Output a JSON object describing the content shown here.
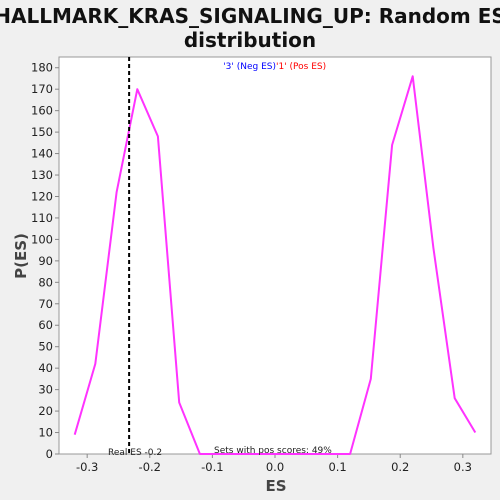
{
  "chart_data": {
    "type": "line",
    "title": "HALLMARK_KRAS_SIGNALING_UP: Random ES distribution",
    "title_lines": [
      "HALLMARK_KRAS_SIGNALING_UP: Random ES",
      "distribution"
    ],
    "xlabel": "ES",
    "ylabel": "P(ES)",
    "xlim": [
      -0.345,
      0.345
    ],
    "ylim": [
      0,
      185
    ],
    "x_ticks": [
      {
        "value": -0.3,
        "label": "-0.3"
      },
      {
        "value": -0.2,
        "label": "-0.2"
      },
      {
        "value": -0.1,
        "label": "-0.1"
      },
      {
        "value": 0.0,
        "label": "0.0"
      },
      {
        "value": 0.1,
        "label": "0.1"
      },
      {
        "value": 0.2,
        "label": "0.2"
      },
      {
        "value": 0.3,
        "label": "0.3"
      }
    ],
    "y_ticks": [
      0,
      10,
      20,
      30,
      40,
      50,
      60,
      70,
      80,
      90,
      100,
      110,
      120,
      130,
      140,
      150,
      160,
      170,
      180
    ],
    "grid": false,
    "series": [
      {
        "color": "#ff33ff",
        "points": [
          [
            -0.32,
            9
          ],
          [
            -0.287,
            42
          ],
          [
            -0.253,
            122
          ],
          [
            -0.22,
            170
          ],
          [
            -0.187,
            148
          ],
          [
            -0.153,
            24
          ],
          [
            -0.12,
            0
          ],
          [
            -0.087,
            0
          ],
          [
            -0.053,
            0
          ],
          [
            -0.02,
            0
          ],
          [
            0.013,
            0
          ],
          [
            0.047,
            0
          ],
          [
            0.08,
            0
          ],
          [
            0.12,
            0
          ],
          [
            0.153,
            35
          ],
          [
            0.187,
            144
          ],
          [
            0.22,
            176
          ],
          [
            0.253,
            96
          ],
          [
            0.287,
            26
          ],
          [
            0.32,
            10
          ]
        ]
      }
    ],
    "real_es": {
      "value": -0.233,
      "color": "#000000"
    },
    "legend": [
      {
        "label": "'3' (Neg ES)",
        "color": "#0000ff"
      },
      {
        "label": "'1' (Pos ES)",
        "color": "#ff0000"
      }
    ],
    "legend_position": "top-center",
    "annotations": {
      "real_es_label": "Real ES -0.2",
      "pos_scores_label": "Sets with pos scores: 49%"
    },
    "colors": {
      "background": "#f0f0f0",
      "plot_background": "#ffffff",
      "axis": "#888888"
    }
  }
}
